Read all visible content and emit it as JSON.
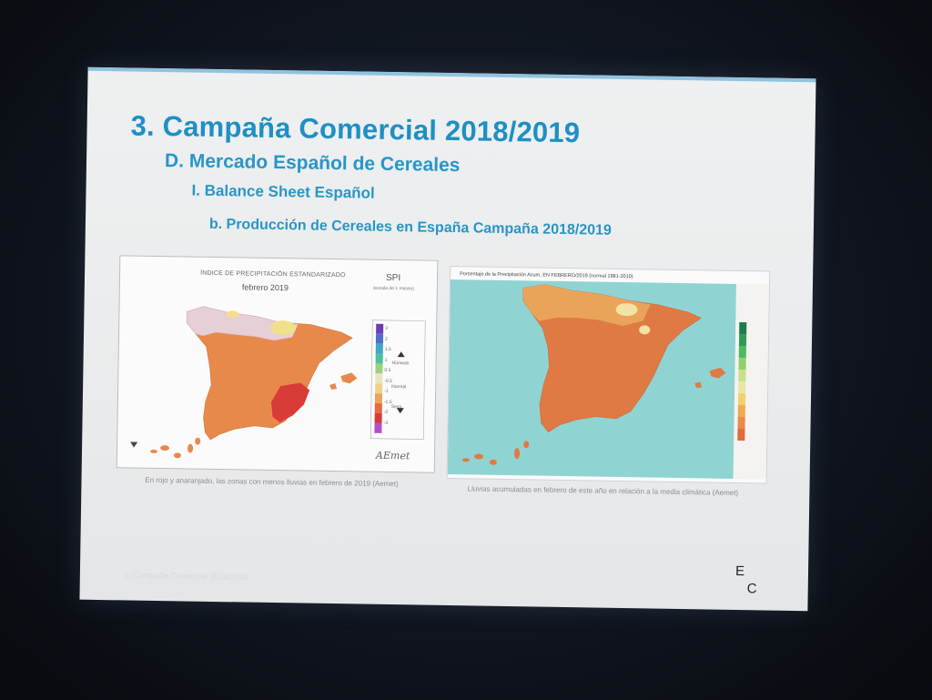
{
  "slide": {
    "title": "3. Campaña Comercial 2018/2019",
    "subtitle": "D. Mercado Español de Cereales",
    "section": "I. Balance Sheet Español",
    "subsection": "b. Producción de Cereales en España Campaña 2018/2019",
    "footer_text": "3. Campaña Comercial 2018/2019",
    "logo_letters": [
      "E",
      "C"
    ]
  },
  "map_left": {
    "title": "ÍNDICE DE PRECIPITACIÓN ESTANDARIZADO",
    "month": "febrero 2019",
    "index": "SPI",
    "index_note": "(escala de 1 meses)",
    "legend_labels": [
      "Húmedo",
      "Normal",
      "Seco"
    ],
    "legend_values": [
      "3",
      "2",
      "1.5",
      "1",
      "0.5",
      "-0.5",
      "-1",
      "-1.5",
      "-2",
      "-3"
    ],
    "legend_colors": [
      "#6a3fb4",
      "#4f6fd0",
      "#3fa8c8",
      "#4fc0a0",
      "#9bd27c",
      "#e8e6c0",
      "#f1d28a",
      "#eea25c",
      "#e56a3c",
      "#d63a3a",
      "#b84cc8"
    ],
    "logo": "AEmet",
    "caption": "En rojo y anaranjado, las zonas con menos lluvias en febrero de 2019 (Aemet)"
  },
  "map_right": {
    "title": "Porcentaje de la Precipitación Acum. EN FEBRERO/2019 (normal 1981-2010)",
    "legend_colors": [
      "#1f7a4c",
      "#2f9a56",
      "#4fb860",
      "#8fd06a",
      "#c8e08a",
      "#e9e6a8",
      "#f0d070",
      "#eeaa50",
      "#e98a48",
      "#e06a3a"
    ],
    "caption": "Lluvias acumuladas en febrero de este año en relación a la media climática (Aemet)"
  }
}
